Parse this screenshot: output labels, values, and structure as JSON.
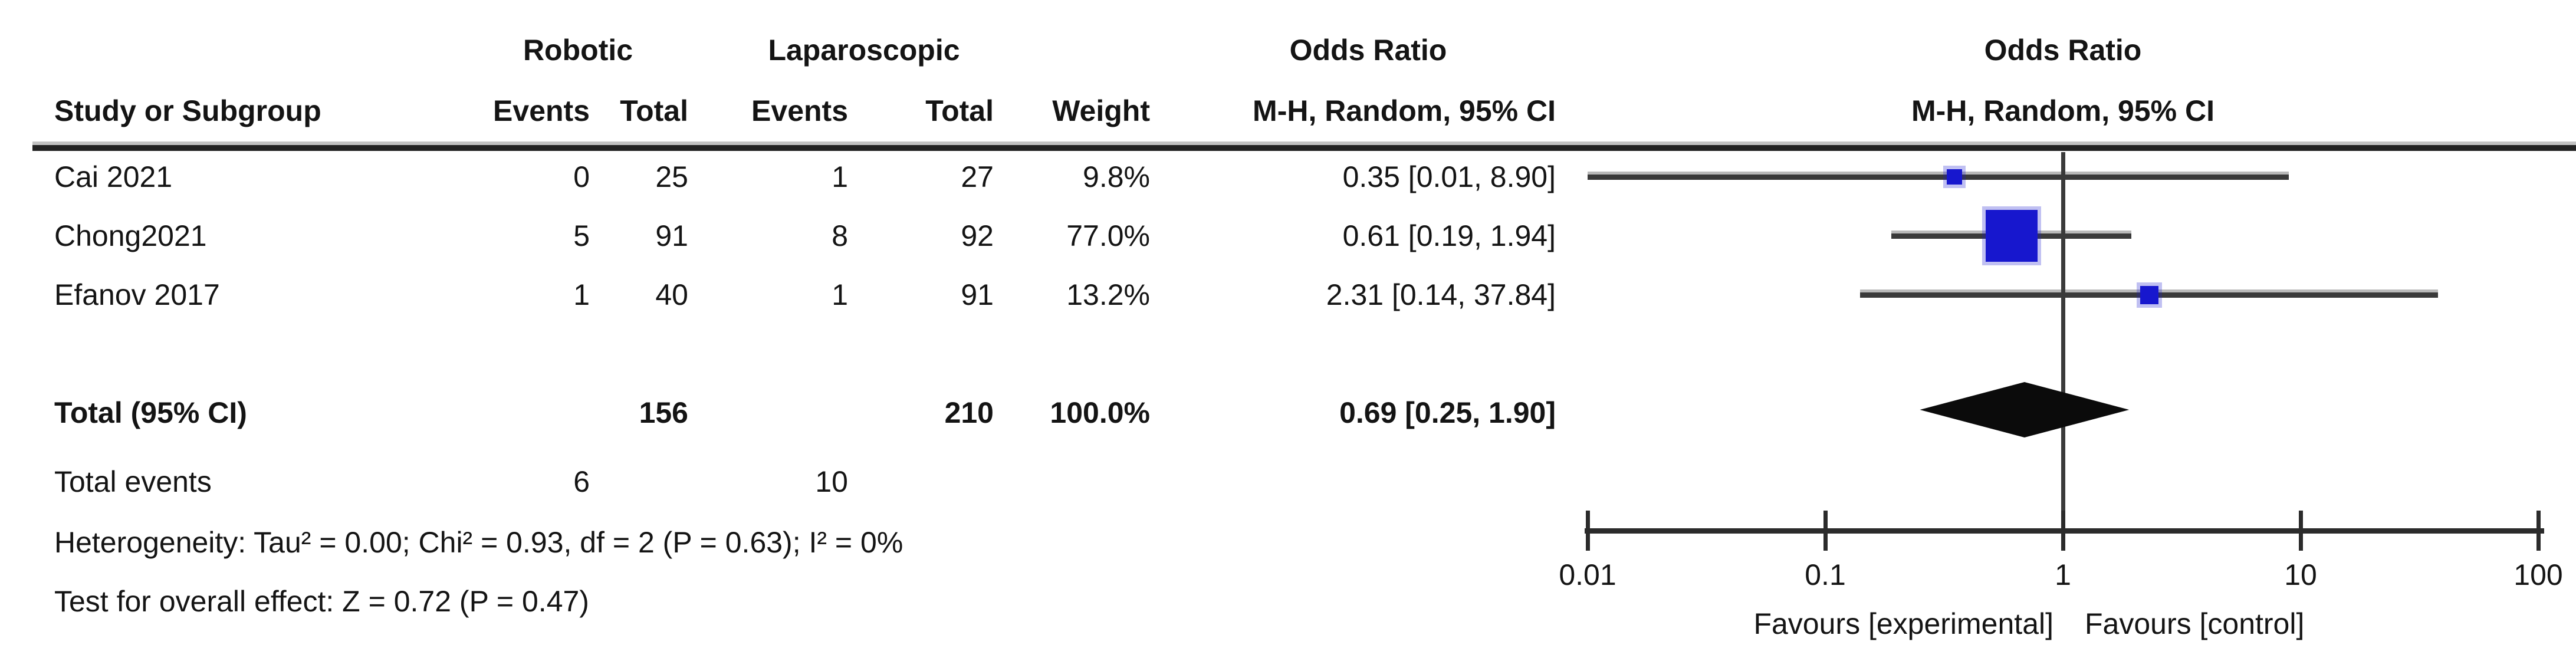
{
  "header": {
    "group_robotic": "Robotic",
    "group_laparoscopic": "Laparoscopic",
    "or_column_title": "Odds Ratio",
    "or_plot_title": "Odds Ratio",
    "study_col": "Study or Subgroup",
    "events_robotic_col": "Events",
    "total_robotic_col": "Total",
    "events_laparoscopic_col": "Events",
    "total_laparoscopic_col": "Total",
    "weight_col": "Weight",
    "mh_column_title": "M-H, Random, 95% CI",
    "mh_plot_title": "M-H, Random, 95% CI"
  },
  "chart_data": {
    "type": "forest",
    "effect_measure": "Odds Ratio",
    "method": "M-H, Random, 95% CI",
    "x_scale": "log10",
    "axis": {
      "ticks": [
        0.01,
        0.1,
        1,
        10,
        100
      ],
      "tick_labels": [
        "0.01",
        "0.1",
        "1",
        "10",
        "100"
      ]
    },
    "studies": [
      {
        "name": "Cai 2021",
        "events_exp": 0,
        "total_exp": 25,
        "events_ctl": 1,
        "total_ctl": 27,
        "weight": "9.8%",
        "or": 0.35,
        "ci_low": 0.01,
        "ci_high": 8.9,
        "or_text": "0.35 [0.01, 8.90]"
      },
      {
        "name": "Chong2021",
        "events_exp": 5,
        "total_exp": 91,
        "events_ctl": 8,
        "total_ctl": 92,
        "weight": "77.0%",
        "or": 0.61,
        "ci_low": 0.19,
        "ci_high": 1.94,
        "or_text": "0.61 [0.19, 1.94]"
      },
      {
        "name": "Efanov 2017",
        "events_exp": 1,
        "total_exp": 40,
        "events_ctl": 1,
        "total_ctl": 91,
        "weight": "13.2%",
        "or": 2.31,
        "ci_low": 0.14,
        "ci_high": 37.84,
        "or_text": "2.31 [0.14, 37.84]"
      }
    ],
    "total": {
      "label": "Total (95% CI)",
      "total_exp": 156,
      "total_ctl": 210,
      "weight": "100.0%",
      "or": 0.69,
      "ci_low": 0.25,
      "ci_high": 1.9,
      "or_text": "0.69 [0.25, 1.90]"
    },
    "total_events": {
      "label": "Total events",
      "exp": 6,
      "ctl": 10
    },
    "heterogeneity": "Heterogeneity: Tau² = 0.00; Chi² = 0.93, df = 2 (P = 0.63); I² = 0%",
    "overall_effect": "Test for overall effect: Z = 0.72 (P = 0.47)",
    "favours_left": "Favours [experimental]",
    "favours_right": "Favours [control]",
    "marker_color": "#1717CE",
    "line_color": "#3a3a3a",
    "diamond_color": "#0b0b0b"
  }
}
